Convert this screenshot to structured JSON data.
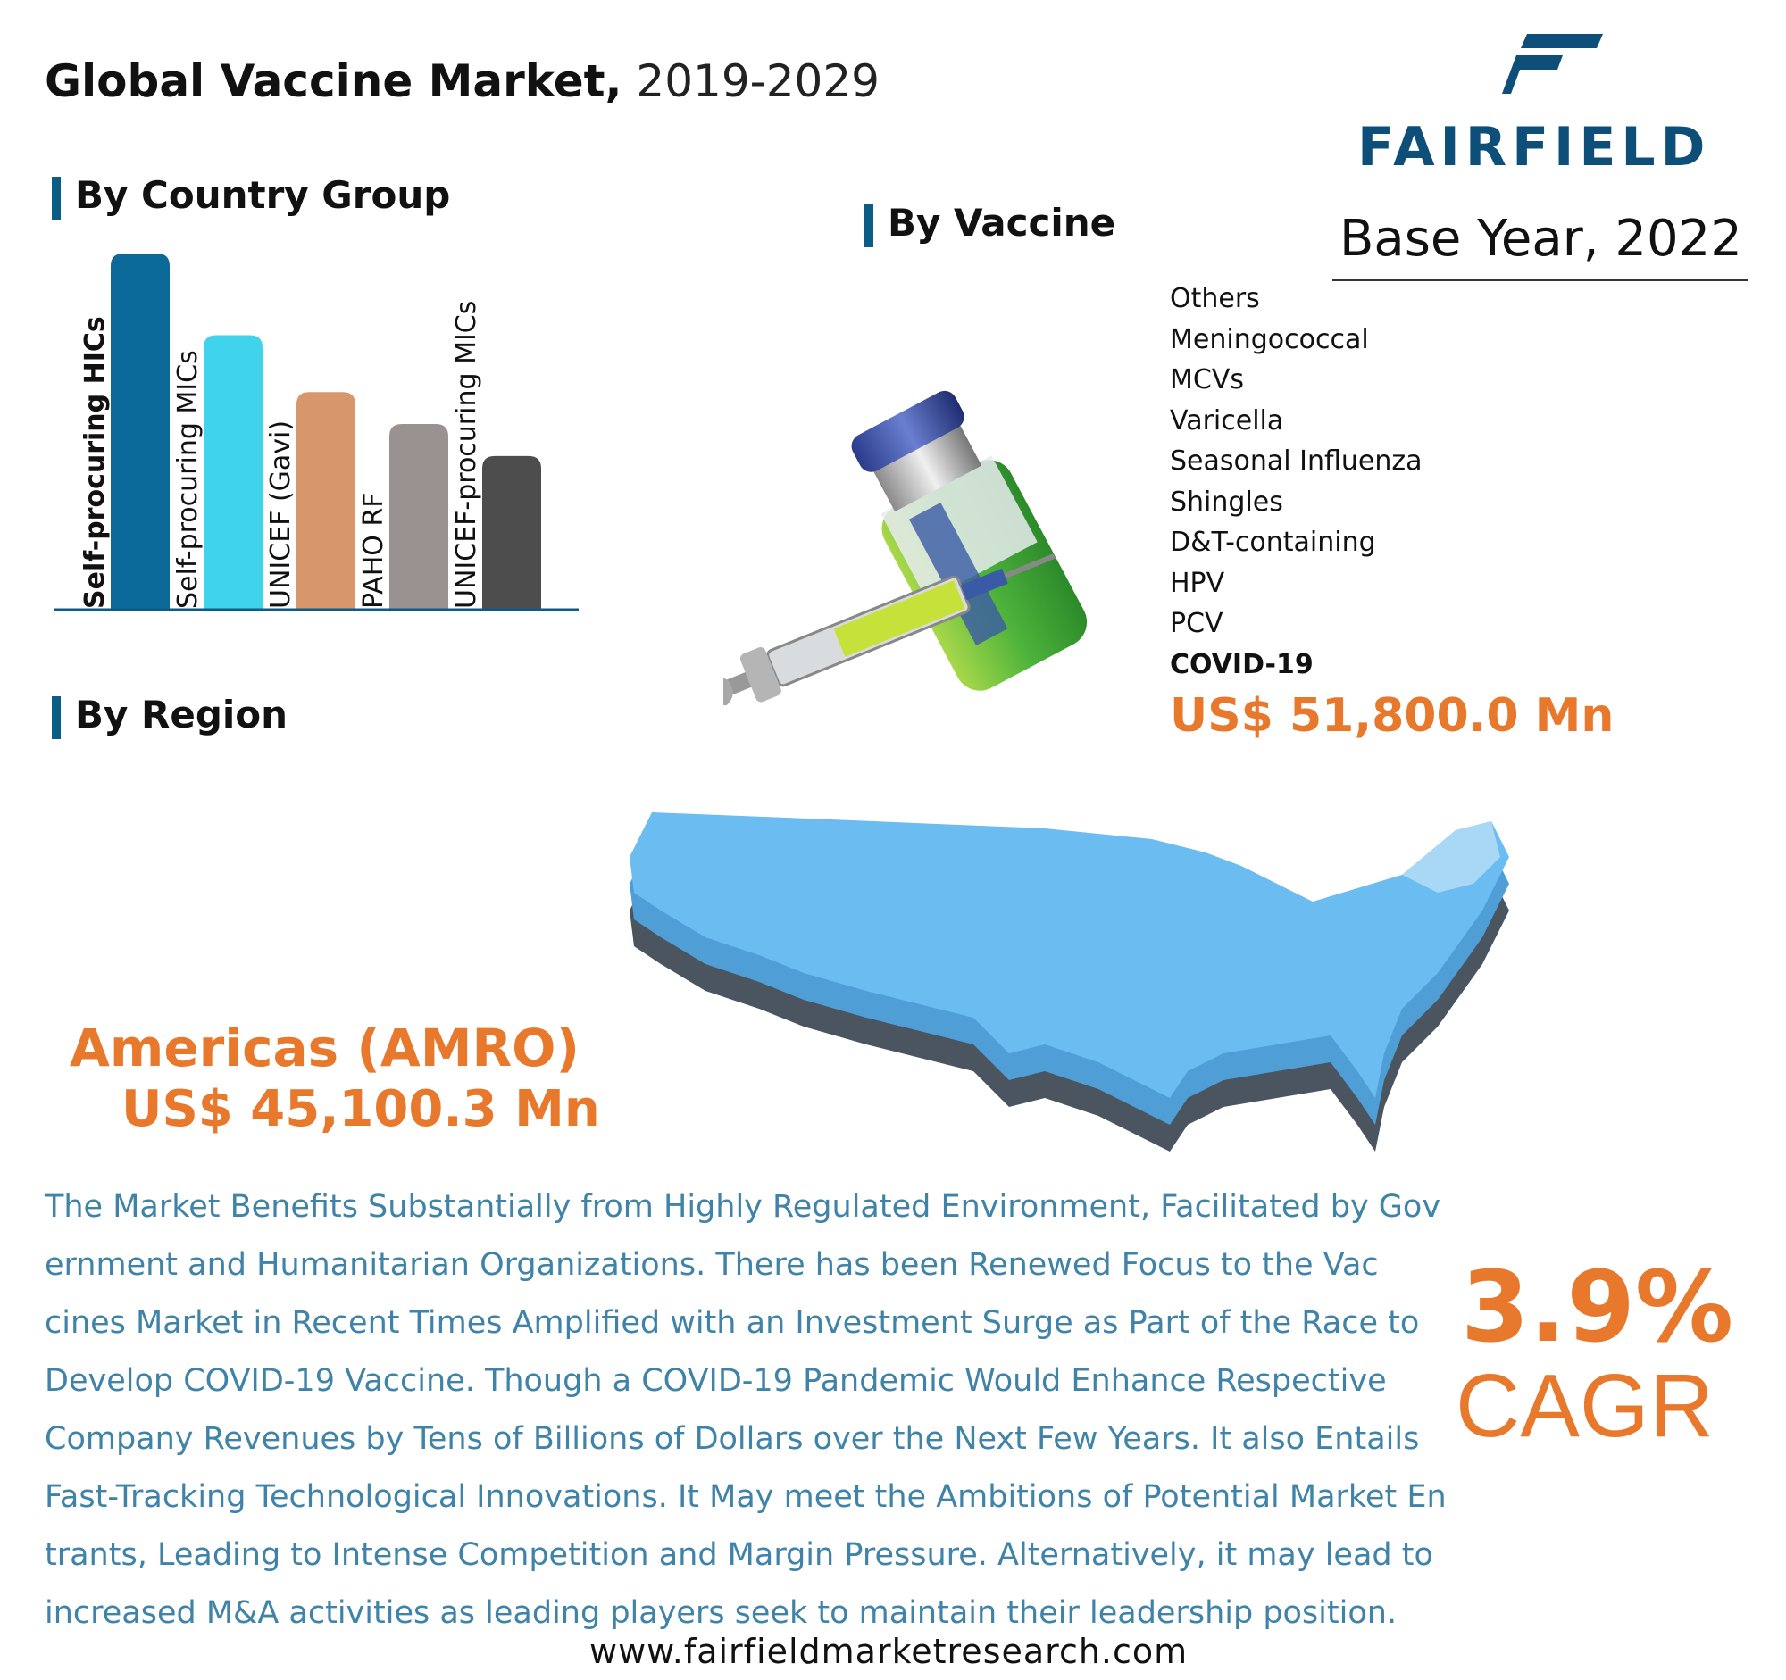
{
  "header": {
    "title_bold": "Global Vaccine Market,",
    "title_years": "2019-2029",
    "logo_text": "FAIRFIELD",
    "base_year": "Base Year, 2022"
  },
  "sections": {
    "country_group": "By Country Group",
    "vaccine": "By Vaccine",
    "region": "By Region"
  },
  "country_group": {
    "bars": [
      {
        "label": "Self-procuring HICs",
        "level": 1.0,
        "color": "#0b6a9a",
        "bold": true
      },
      {
        "label": "Self-procuring MICs",
        "level": 0.77,
        "color": "#3fd3ec",
        "bold": false
      },
      {
        "label": "UNICEF (Gavi)",
        "level": 0.61,
        "color": "#d7976b",
        "bold": false
      },
      {
        "label": "PAHO RF",
        "level": 0.52,
        "color": "#9a9290",
        "bold": false
      },
      {
        "label": "UNICEF-procuring MICs",
        "level": 0.43,
        "color": "#4d4d4d",
        "bold": false
      }
    ]
  },
  "vaccine": {
    "items": [
      "Others",
      "Meningococcal",
      "MCVs",
      "Varicella",
      "Seasonal Influenza",
      "Shingles",
      "D&T-containing",
      "HPV",
      "PCV",
      "COVID-19"
    ],
    "top_value": "US$ 51,800.0 Mn"
  },
  "region": {
    "name": "Americas (AMRO)",
    "value": "US$ 45,100.3 Mn"
  },
  "description": {
    "lines": [
      "The Market Benefits Substantially from Highly Regulated Environment, Facilitated by Gov",
      "ernment and Humanitarian Organizations. There has been Renewed Focus to the Vac",
      "cines Market in Recent Times Amplified with an Investment Surge as Part of the Race to",
      "Develop COVID-19 Vaccine. Though a COVID-19 Pandemic Would Enhance Respective",
      "Company Revenues by Tens of Billions of Dollars over the Next Few Years. It also Entails",
      "Fast-Tracking Technological Innovations. It May meet the Ambitions of Potential Market En",
      "trants, Leading to Intense Competition and Margin Pressure.  Alternatively, it may lead to",
      "increased M&A activities as leading players seek to maintain their leadership position."
    ]
  },
  "cagr": {
    "value": "3.9%",
    "label": "CAGR"
  },
  "footer": {
    "website": "www.fairfieldmarketresearch.com"
  },
  "colors": {
    "accent": "#e8782b",
    "brand": "#0e4f7a",
    "text_blue": "#3f83a8",
    "map_fill": "#6bbcf0",
    "map_shadow": "#4a5560"
  },
  "icons": [
    "fairfield-logo-icon",
    "vaccine-vial-syringe-icon",
    "usa-map-icon"
  ]
}
